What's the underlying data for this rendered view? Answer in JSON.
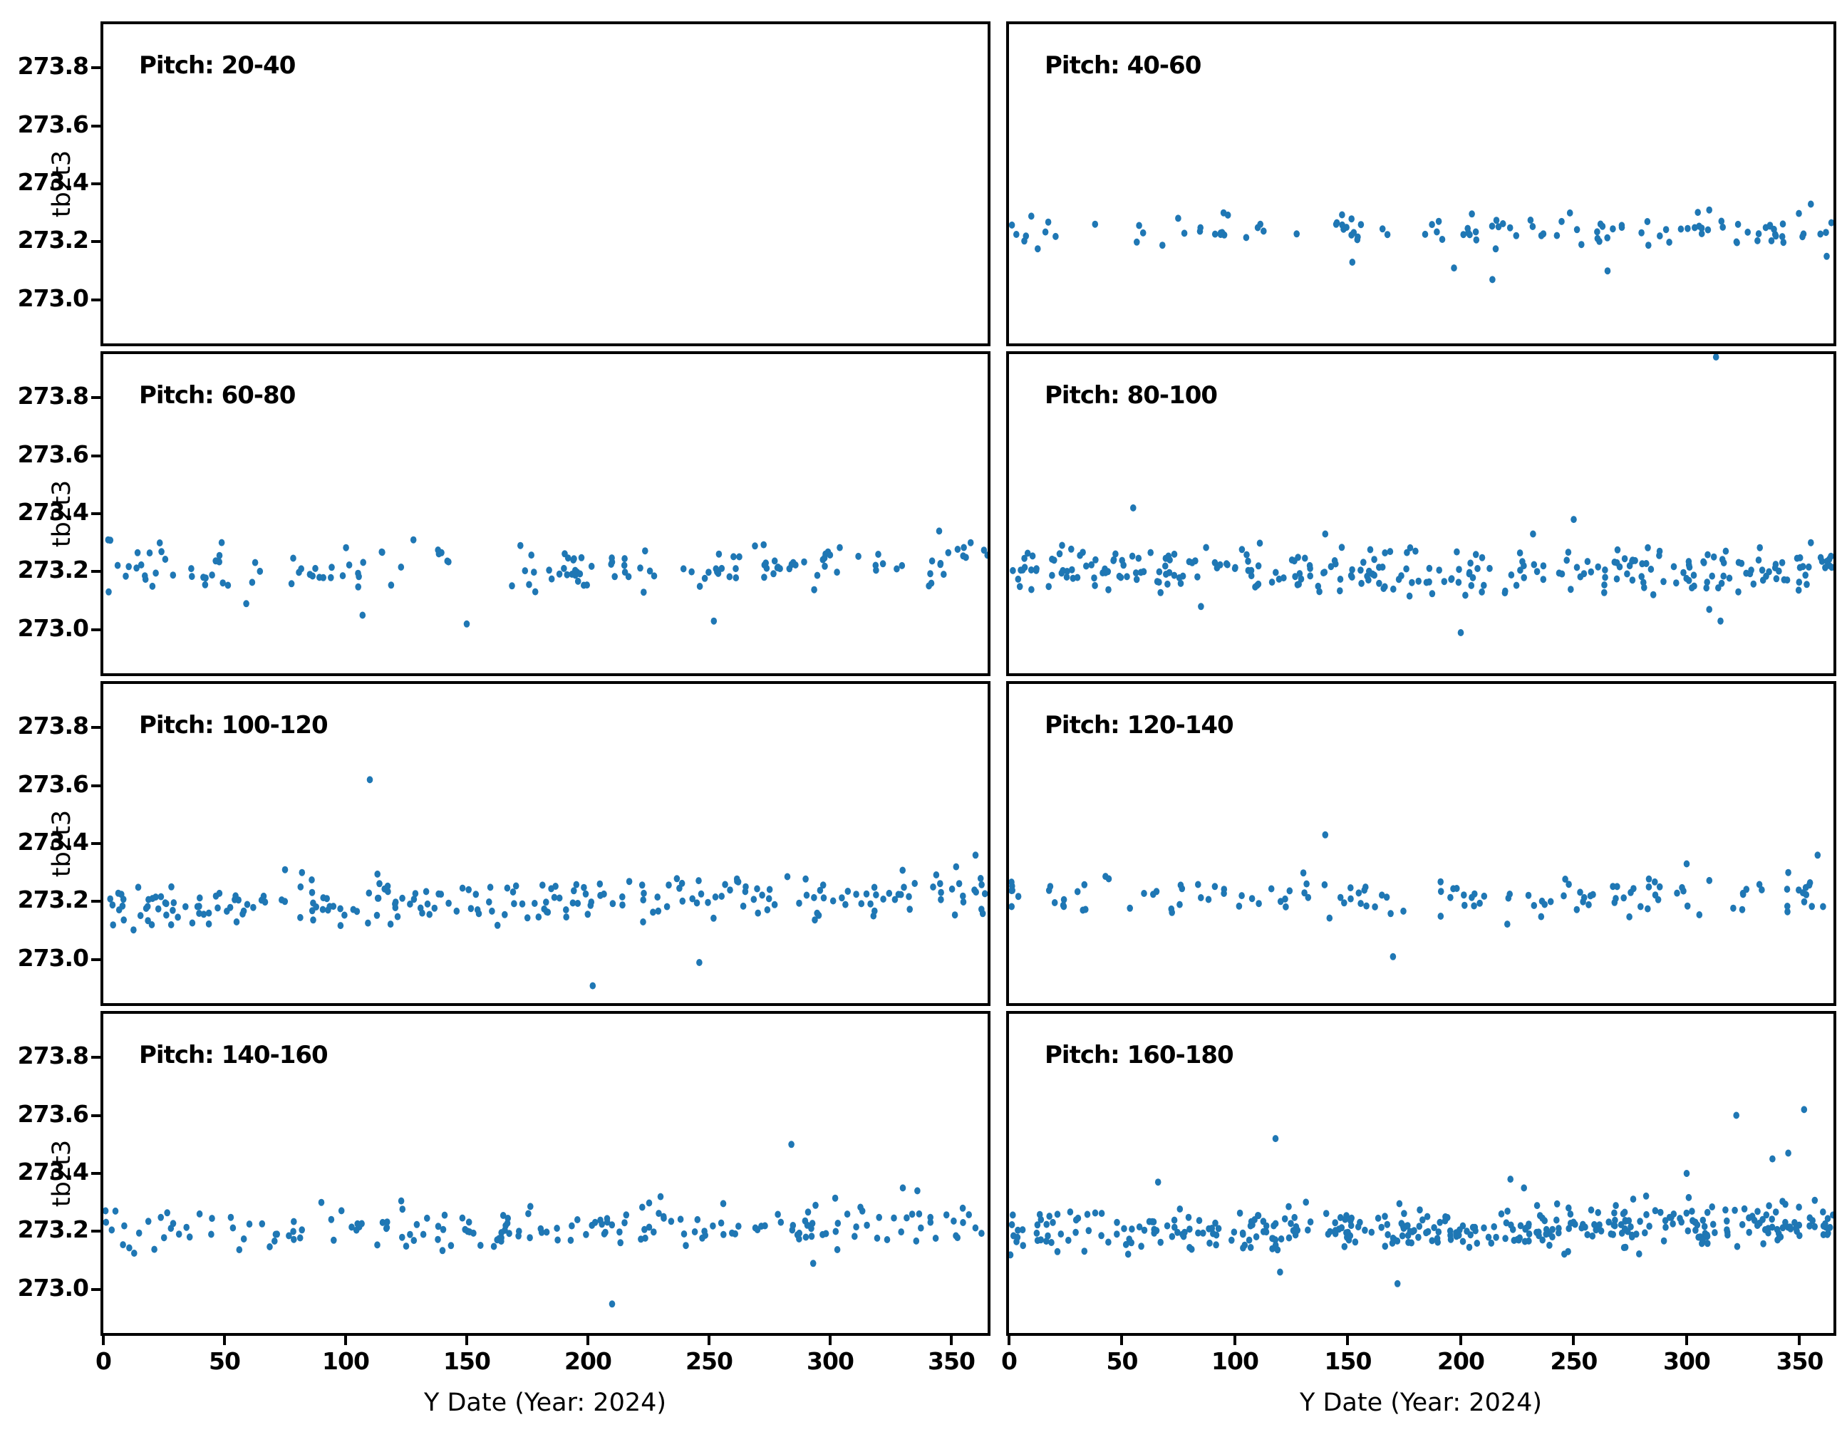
{
  "figure": {
    "xlabel": "Y Date (Year: 2024)",
    "ylabel": "tb2t3",
    "xlim": [
      0,
      365
    ],
    "ylim": [
      272.85,
      273.95
    ],
    "x_ticks": [
      {
        "v": 0,
        "label": "0"
      },
      {
        "v": 50,
        "label": "50"
      },
      {
        "v": 100,
        "label": "100"
      },
      {
        "v": 150,
        "label": "150"
      },
      {
        "v": 200,
        "label": "200"
      },
      {
        "v": 250,
        "label": "250"
      },
      {
        "v": 300,
        "label": "300"
      },
      {
        "v": 350,
        "label": "350"
      }
    ],
    "y_ticks": [
      {
        "v": 273.0,
        "label": "273.0"
      },
      {
        "v": 273.2,
        "label": "273.2"
      },
      {
        "v": 273.4,
        "label": "273.4"
      },
      {
        "v": 273.6,
        "label": "273.6"
      },
      {
        "v": 273.8,
        "label": "273.8"
      }
    ],
    "dot_color": "#1f77b4",
    "grid": false,
    "legend": "none"
  },
  "chart_data": [
    {
      "type": "scatter",
      "title": "Pitch: 20-40",
      "n": 0,
      "seed": 1,
      "y_mean": 273.22,
      "y_std": 0.03,
      "trend": 0,
      "x_weights": [
        [
          0,
          365,
          1
        ]
      ],
      "outliers": []
    },
    {
      "type": "scatter",
      "title": "Pitch: 40-60",
      "n": 118,
      "seed": 42,
      "y_mean": 273.24,
      "y_std": 0.028,
      "trend": 0,
      "x_weights": [
        [
          0,
          20,
          1.0
        ],
        [
          20,
          50,
          0.35
        ],
        [
          50,
          70,
          0.4
        ],
        [
          70,
          105,
          0.8
        ],
        [
          105,
          145,
          0.6
        ],
        [
          145,
          185,
          0.9
        ],
        [
          185,
          225,
          1.1
        ],
        [
          225,
          260,
          0.9
        ],
        [
          260,
          300,
          1.1
        ],
        [
          300,
          335,
          1.3
        ],
        [
          335,
          365,
          1.6
        ]
      ],
      "outliers": [
        [
          197,
          273.11
        ],
        [
          214,
          273.07
        ],
        [
          265,
          273.1
        ],
        [
          152,
          273.13
        ],
        [
          310,
          273.31
        ],
        [
          355,
          273.33
        ],
        [
          95,
          273.3
        ],
        [
          362,
          273.15
        ]
      ]
    },
    {
      "type": "scatter",
      "title": "Pitch: 60-80",
      "n": 160,
      "seed": 7,
      "y_mean": 273.215,
      "y_std": 0.04,
      "trend": 0,
      "x_weights": [
        [
          0,
          30,
          1.5
        ],
        [
          30,
          100,
          1.0
        ],
        [
          100,
          145,
          1.1
        ],
        [
          145,
          165,
          0.15
        ],
        [
          165,
          200,
          1.2
        ],
        [
          200,
          250,
          1.0
        ],
        [
          250,
          315,
          0.95
        ],
        [
          315,
          340,
          0.5
        ],
        [
          340,
          365,
          1.4
        ]
      ],
      "outliers": [
        [
          59,
          273.09
        ],
        [
          107,
          273.05
        ],
        [
          150,
          273.02
        ],
        [
          252,
          273.03
        ],
        [
          128,
          273.31
        ],
        [
          345,
          273.34
        ],
        [
          2,
          273.31
        ],
        [
          358,
          273.3
        ]
      ]
    },
    {
      "type": "scatter",
      "title": "Pitch: 80-100",
      "n": 285,
      "seed": 13,
      "y_mean": 273.205,
      "y_std": 0.042,
      "trend": 0,
      "x_weights": [
        [
          0,
          365,
          1
        ]
      ],
      "outliers": [
        [
          313,
          273.94
        ],
        [
          55,
          273.42
        ],
        [
          250,
          273.38
        ],
        [
          232,
          273.33
        ],
        [
          140,
          273.33
        ],
        [
          200,
          272.99
        ],
        [
          315,
          273.03
        ],
        [
          310,
          273.07
        ],
        [
          85,
          273.08
        ],
        [
          355,
          273.3
        ]
      ]
    },
    {
      "type": "scatter",
      "title": "Pitch: 100-120",
      "n": 235,
      "seed": 99,
      "y_mean": 273.205,
      "y_std": 0.04,
      "trend": 0.0001,
      "x_weights": [
        [
          0,
          270,
          1
        ],
        [
          270,
          300,
          0.7
        ],
        [
          300,
          365,
          1
        ]
      ],
      "outliers": [
        [
          110,
          273.62
        ],
        [
          202,
          272.91
        ],
        [
          246,
          272.99
        ],
        [
          75,
          273.31
        ],
        [
          82,
          273.3
        ],
        [
          20,
          273.12
        ],
        [
          28,
          273.12
        ],
        [
          55,
          273.13
        ],
        [
          360,
          273.36
        ],
        [
          352,
          273.32
        ]
      ]
    },
    {
      "type": "scatter",
      "title": "Pitch: 120-140",
      "n": 135,
      "seed": 5,
      "y_mean": 273.215,
      "y_std": 0.036,
      "trend": 0,
      "x_weights": [
        [
          0,
          30,
          1.2
        ],
        [
          30,
          100,
          0.85
        ],
        [
          100,
          170,
          1.1
        ],
        [
          170,
          195,
          0.3
        ],
        [
          195,
          280,
          1.1
        ],
        [
          280,
          330,
          0.9
        ],
        [
          330,
          365,
          1.2
        ]
      ],
      "outliers": [
        [
          140,
          273.43
        ],
        [
          170,
          273.01
        ],
        [
          358,
          273.36
        ],
        [
          345,
          273.3
        ],
        [
          300,
          273.33
        ]
      ]
    },
    {
      "type": "scatter",
      "title": "Pitch: 140-160",
      "n": 190,
      "seed": 21,
      "y_mean": 273.215,
      "y_std": 0.036,
      "trend": 8e-05,
      "x_weights": [
        [
          0,
          55,
          1
        ],
        [
          55,
          90,
          0.6
        ],
        [
          90,
          365,
          1
        ]
      ],
      "outliers": [
        [
          284,
          273.5
        ],
        [
          210,
          272.95
        ],
        [
          293,
          273.09
        ],
        [
          230,
          273.32
        ],
        [
          330,
          273.35
        ],
        [
          336,
          273.34
        ],
        [
          90,
          273.3
        ],
        [
          5,
          273.27
        ]
      ]
    },
    {
      "type": "scatter",
      "title": "Pitch: 160-180",
      "n": 390,
      "seed": 77,
      "y_mean": 273.21,
      "y_std": 0.038,
      "trend": 0.00012,
      "x_weights": [
        [
          0,
          250,
          1
        ],
        [
          250,
          365,
          1.3
        ]
      ],
      "outliers": [
        [
          118,
          273.52
        ],
        [
          322,
          273.6
        ],
        [
          352,
          273.62
        ],
        [
          345,
          273.47
        ],
        [
          338,
          273.45
        ],
        [
          222,
          273.38
        ],
        [
          228,
          273.35
        ],
        [
          172,
          273.02
        ],
        [
          120,
          273.06
        ],
        [
          66,
          273.37
        ],
        [
          300,
          273.4
        ]
      ]
    }
  ]
}
